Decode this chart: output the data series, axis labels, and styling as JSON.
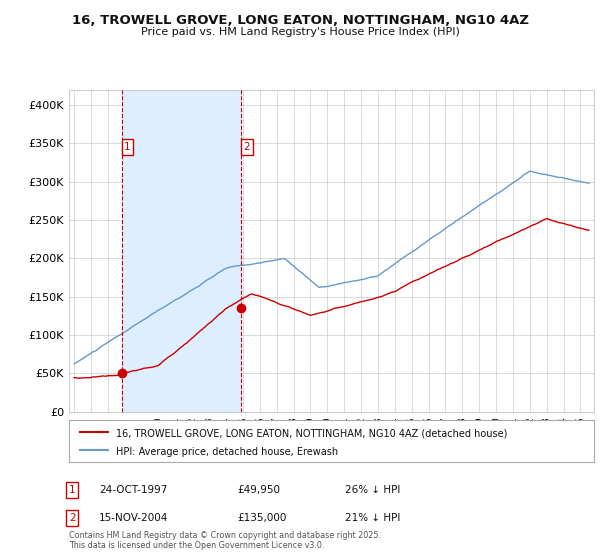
{
  "title": "16, TROWELL GROVE, LONG EATON, NOTTINGHAM, NG10 4AZ",
  "subtitle": "Price paid vs. HM Land Registry's House Price Index (HPI)",
  "legend_line1": "16, TROWELL GROVE, LONG EATON, NOTTINGHAM, NG10 4AZ (detached house)",
  "legend_line2": "HPI: Average price, detached house, Erewash",
  "annotation1_date": "24-OCT-1997",
  "annotation1_price": "£49,950",
  "annotation1_hpi": "26% ↓ HPI",
  "annotation2_date": "15-NOV-2004",
  "annotation2_price": "£135,000",
  "annotation2_hpi": "21% ↓ HPI",
  "footnote": "Contains HM Land Registry data © Crown copyright and database right 2025.\nThis data is licensed under the Open Government Licence v3.0.",
  "sale_color": "#cc0000",
  "hpi_color": "#6699cc",
  "shade_color": "#ddeeff",
  "bg_color": "#ffffff",
  "ylim": [
    0,
    420000
  ],
  "yticks": [
    0,
    50000,
    100000,
    150000,
    200000,
    250000,
    300000,
    350000,
    400000
  ],
  "sale1_year": 1997.82,
  "sale1_price": 49950,
  "sale2_year": 2004.88,
  "sale2_price": 135000,
  "xlim_left": 1994.7,
  "xlim_right": 2025.8
}
